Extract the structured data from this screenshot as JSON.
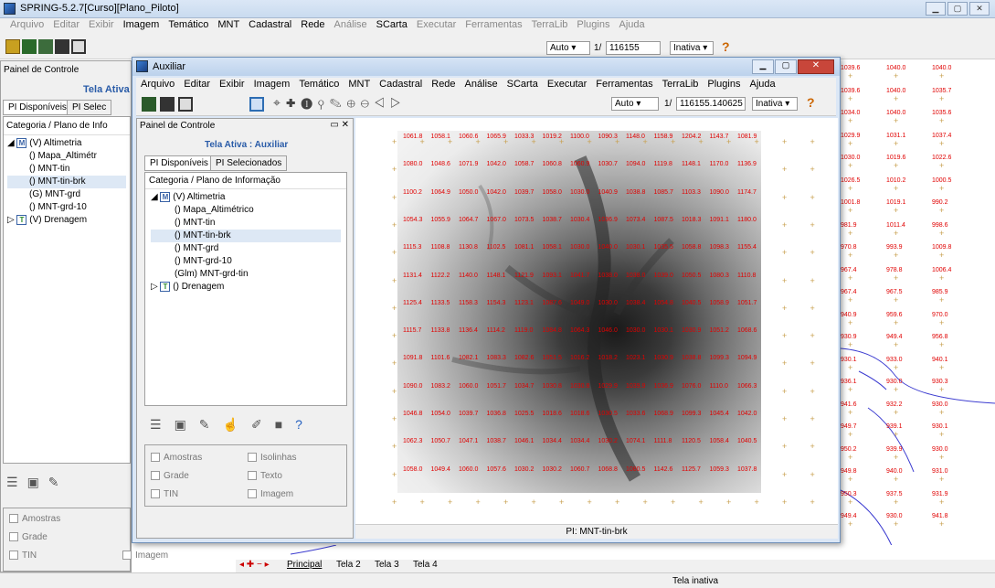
{
  "main": {
    "title": "SPRING-5.2.7[Curso][Plano_Piloto]",
    "menu": [
      "Arquivo",
      "Editar",
      "Exibir",
      "Imagem",
      "Temático",
      "MNT",
      "Cadastral",
      "Rede",
      "Análise",
      "SCarta",
      "Executar",
      "Ferramentas",
      "TerraLib",
      "Plugins",
      "Ajuda"
    ],
    "zoom_mode": "Auto",
    "scale_prefix": "1/",
    "scale": "116155",
    "state": "Inativa",
    "panel_title": "Painel de Controle",
    "active_screen": "Tela Ativa",
    "tabs": [
      "PI Disponíveis",
      "PI Selec"
    ],
    "category_header": "Categoria / Plano de Info",
    "tree": {
      "altimetria": "(V) Altimetria",
      "items": [
        "() Mapa_Altimétr",
        "() MNT-tin",
        "() MNT-tin-brk",
        "(G) MNT-grd",
        "() MNT-grd-10"
      ],
      "drenagem": "(V) Drenagem"
    },
    "checks": [
      "Amostras",
      "Imagem",
      "Grade",
      "TIN"
    ],
    "screen_tabs": [
      "Principal",
      "Tela 2",
      "Tela 3",
      "Tela 4"
    ],
    "status": "Tela inativa",
    "side_values": [
      [
        "1039.6",
        "1040.0",
        "1040.0"
      ],
      [
        "1039.6",
        "1040.0",
        "1035.7"
      ],
      [
        "1034.0",
        "1040.0",
        "1035.6"
      ],
      [
        "1029.9",
        "1031.1",
        "1037.4"
      ],
      [
        "1030.0",
        "1019.6",
        "1022.6"
      ],
      [
        "1026.5",
        "1010.2",
        "1000.5"
      ],
      [
        "1001.8",
        "1019.1",
        "990.2"
      ],
      [
        "981.9",
        "1011.4",
        "998.6"
      ],
      [
        "970.8",
        "993.9",
        "1009.8"
      ],
      [
        "967.4",
        "978.8",
        "1006.4"
      ],
      [
        "967.4",
        "967.5",
        "985.9"
      ],
      [
        "940.9",
        "959.6",
        "970.0"
      ],
      [
        "930.9",
        "949.4",
        "956.8"
      ],
      [
        "930.1",
        "933.0",
        "940.1"
      ],
      [
        "936.1",
        "930.0",
        "930.3"
      ],
      [
        "941.6",
        "932.2",
        "930.0"
      ],
      [
        "949.7",
        "939.1",
        "930.1"
      ],
      [
        "950.2",
        "939.9",
        "930.0"
      ],
      [
        "949.8",
        "940.0",
        "931.0"
      ],
      [
        "950.3",
        "937.5",
        "931.9"
      ],
      [
        "949.4",
        "930.0",
        "941.8"
      ]
    ]
  },
  "aux": {
    "title": "Auxiliar",
    "menu": [
      "Arquivo",
      "Editar",
      "Exibir",
      "Imagem",
      "Temático",
      "MNT",
      "Cadastral",
      "Rede",
      "Análise",
      "SCarta",
      "Executar",
      "Ferramentas",
      "TerraLib",
      "Plugins",
      "Ajuda"
    ],
    "zoom_mode": "Auto",
    "scale_prefix": "1/",
    "scale": "116155.140625",
    "state": "Inativa",
    "panel_title": "Painel de Controle",
    "active_screen": "Tela Ativa : Auxiliar",
    "tabs": [
      "PI Disponíveis",
      "PI Selecionados"
    ],
    "category_header": "Categoria / Plano de Informação",
    "tree": {
      "altimetria": "(V) Altimetria",
      "items": [
        "() Mapa_Altimétrico",
        "() MNT-tin",
        "() MNT-tin-brk",
        "() MNT-grd",
        "() MNT-grd-10",
        "(Glm) MNT-grd-tin"
      ],
      "drenagem": "() Drenagem"
    },
    "checks": [
      "Amostras",
      "Isolinhas",
      "Grade",
      "Texto",
      "TIN",
      "Imagem"
    ],
    "map_status": "PI: MNT-tin-brk",
    "grid_values": [
      [
        "1061.8",
        "1058.1",
        "1060.6",
        "1065.9",
        "1033.3",
        "1019.2",
        "1100.0",
        "1090.3",
        "1148.0",
        "1158.9",
        "1204.2",
        "1143.7",
        "1081.9"
      ],
      [
        "1080.0",
        "1048.6",
        "1071.9",
        "1042.0",
        "1058.7",
        "1060.8",
        "1060.9",
        "1030.7",
        "1094.0",
        "1119.8",
        "1148.1",
        "1170.0",
        "1136.9"
      ],
      [
        "1100.2",
        "1064.9",
        "1050.0",
        "1042.0",
        "1039.7",
        "1058.0",
        "1030.0",
        "1040.9",
        "1038.8",
        "1085.7",
        "1103.3",
        "1090.0",
        "1174.7"
      ],
      [
        "1054.3",
        "1055.9",
        "1064.7",
        "1067.0",
        "1073.5",
        "1038.7",
        "1030.4",
        "1036.9",
        "1073.4",
        "1087.5",
        "1018.3",
        "1091.1",
        "1180.0"
      ],
      [
        "1115.3",
        "1108.8",
        "1130.8",
        "1102.5",
        "1081.1",
        "1058.1",
        "1030.0",
        "1040.0",
        "1030.1",
        "1035.5",
        "1058.8",
        "1098.3",
        "1155.4"
      ],
      [
        "1131.4",
        "1122.2",
        "1140.0",
        "1148.1",
        "1121.9",
        "1093.1",
        "1041.7",
        "1038.0",
        "1038.0",
        "1039.0",
        "1050.5",
        "1080.3",
        "1110.8"
      ],
      [
        "1125.4",
        "1133.5",
        "1158.3",
        "1154.3",
        "1123.1",
        "1087.6",
        "1049.0",
        "1030.0",
        "1038.4",
        "1054.8",
        "1040.5",
        "1058.9",
        "1051.7"
      ],
      [
        "1115.7",
        "1133.8",
        "1136.4",
        "1114.2",
        "1119.0",
        "1084.8",
        "1064.3",
        "1046.0",
        "1030.0",
        "1030.1",
        "1030.9",
        "1051.2",
        "1068.6"
      ],
      [
        "1091.8",
        "1101.6",
        "1082.1",
        "1083.3",
        "1082.6",
        "1051.5",
        "1016.2",
        "1018.2",
        "1023.1",
        "1030.9",
        "1038.8",
        "1099.3",
        "1094.9"
      ],
      [
        "1090.0",
        "1083.2",
        "1060.0",
        "1051.7",
        "1034.7",
        "1030.8",
        "1030.8",
        "1029.9",
        "1039.9",
        "1036.9",
        "1076.0",
        "1110.0",
        "1066.3"
      ],
      [
        "1046.8",
        "1054.0",
        "1039.7",
        "1036.8",
        "1025.5",
        "1018.6",
        "1018.6",
        "1030.5",
        "1033.6",
        "1068.9",
        "1099.3",
        "1045.4",
        "1042.0"
      ],
      [
        "1062.3",
        "1050.7",
        "1047.1",
        "1038.7",
        "1046.1",
        "1034.4",
        "1034.4",
        "1030.2",
        "1074.1",
        "1111.8",
        "1120.5",
        "1058.4",
        "1040.5"
      ],
      [
        "1058.0",
        "1049.4",
        "1060.0",
        "1057.6",
        "1030.2",
        "1030.2",
        "1060.7",
        "1068.8",
        "1080.5",
        "1142.6",
        "1125.7",
        "1059.3",
        "1037.8"
      ]
    ]
  }
}
